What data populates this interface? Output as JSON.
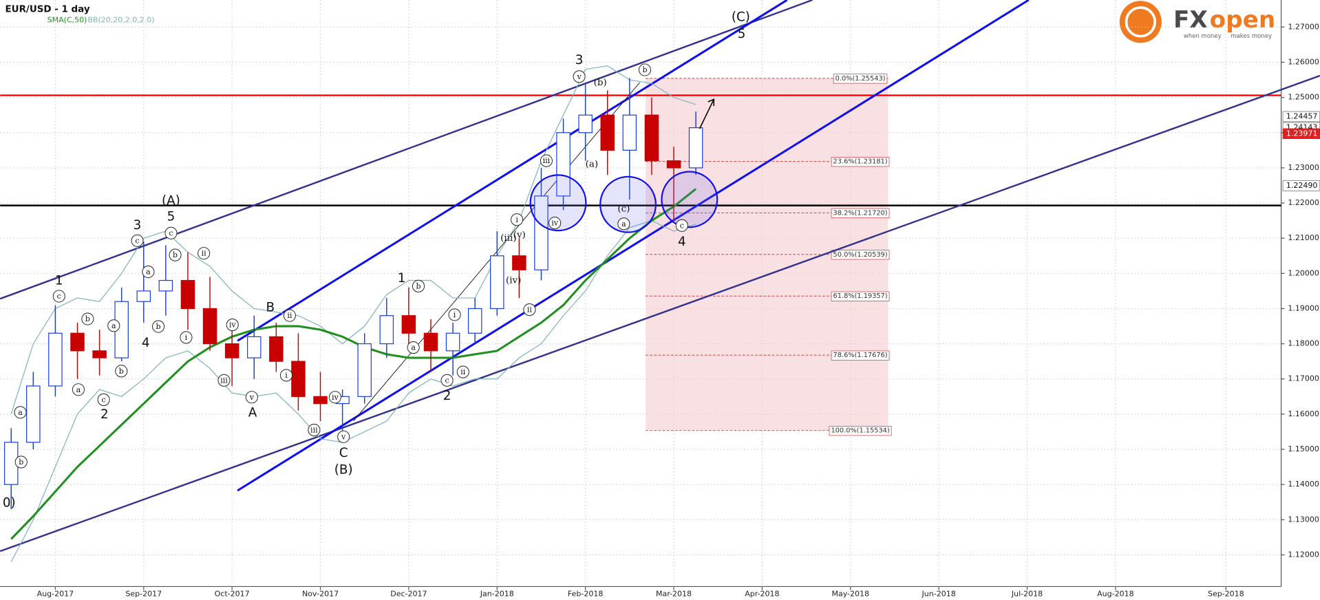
{
  "chart_data": {
    "type": "candlestick",
    "title": "EUR/USD - 1 day",
    "categories": [
      null,
      null,
      "Aug-2017",
      null,
      null,
      null,
      "Sep-2017",
      null,
      null,
      null,
      "Oct-2017",
      null,
      null,
      null,
      "Nov-2017",
      null,
      null,
      null,
      "Dec-2017",
      null,
      null,
      null,
      "Jan-2018",
      null,
      null,
      null,
      "Feb-2018",
      null,
      null,
      null,
      "Mar-2018",
      null,
      null,
      null,
      "Apr-2018",
      null,
      null,
      null,
      "May-2018",
      null,
      null,
      null,
      "Jun-2018",
      null,
      null,
      null,
      "Jul-2018",
      null,
      null,
      null,
      "Aug-2018",
      null,
      null,
      null,
      null,
      "Sep-2018",
      null,
      null
    ],
    "open": [
      1.14,
      1.152,
      1.168,
      1.183,
      1.178,
      1.176,
      1.192,
      1.195,
      1.198,
      1.19,
      1.18,
      1.176,
      1.182,
      1.175,
      1.165,
      1.163,
      1.165,
      1.18,
      1.188,
      1.183,
      1.178,
      1.183,
      1.19,
      1.205,
      1.201,
      1.222,
      1.24,
      1.245,
      1.235,
      1.245,
      1.232,
      1.23,
      null,
      null,
      null,
      null,
      null,
      null,
      null,
      null,
      null,
      null,
      null,
      null,
      null,
      null,
      null,
      null,
      null,
      null,
      null,
      null,
      null,
      null,
      null,
      null,
      null,
      null
    ],
    "high": [
      1.156,
      1.172,
      1.191,
      1.186,
      1.184,
      1.196,
      1.209,
      1.208,
      1.206,
      1.199,
      1.186,
      1.188,
      1.186,
      1.183,
      1.172,
      1.167,
      1.183,
      1.193,
      1.196,
      1.187,
      1.186,
      1.193,
      1.212,
      1.21,
      1.23,
      1.244,
      1.254,
      1.252,
      1.2555,
      1.25,
      1.236,
      1.246,
      null,
      null,
      null,
      null,
      null,
      null,
      null,
      null,
      null,
      null,
      null,
      null,
      null,
      null,
      null,
      null,
      null,
      null,
      null,
      null,
      null,
      null,
      null,
      null,
      null,
      null
    ],
    "low": [
      1.133,
      1.15,
      1.165,
      1.17,
      1.171,
      1.175,
      1.186,
      1.188,
      1.184,
      1.178,
      1.168,
      1.17,
      1.172,
      1.161,
      1.158,
      1.155,
      1.163,
      1.176,
      1.18,
      1.172,
      1.171,
      1.18,
      1.188,
      1.193,
      1.198,
      1.218,
      1.232,
      1.228,
      1.221,
      1.228,
      1.215,
      1.228,
      null,
      null,
      null,
      null,
      null,
      null,
      null,
      null,
      null,
      null,
      null,
      null,
      null,
      null,
      null,
      null,
      null,
      null,
      null,
      null,
      null,
      null,
      null,
      null,
      null,
      null
    ],
    "close": [
      1.152,
      1.168,
      1.183,
      1.178,
      1.176,
      1.192,
      1.195,
      1.198,
      1.19,
      1.18,
      1.176,
      1.182,
      1.175,
      1.165,
      1.163,
      1.165,
      1.18,
      1.188,
      1.183,
      1.178,
      1.183,
      1.19,
      1.205,
      1.201,
      1.222,
      1.24,
      1.245,
      1.235,
      1.245,
      1.232,
      1.23,
      1.2414,
      null,
      null,
      null,
      null,
      null,
      null,
      null,
      null,
      null,
      null,
      null,
      null,
      null,
      null,
      null,
      null,
      null,
      null,
      null,
      null,
      null,
      null,
      null,
      null,
      null,
      null
    ],
    "up_color": "#1c3fd6",
    "down_color": "#c80000",
    "series": [
      {
        "name": "SMA(C,50)",
        "color": "#1f8f1f",
        "values": [
          1.1245,
          1.131,
          1.138,
          1.145,
          1.151,
          1.157,
          1.163,
          1.169,
          1.175,
          1.179,
          1.182,
          1.184,
          1.185,
          1.185,
          1.184,
          1.182,
          1.179,
          1.177,
          1.176,
          1.176,
          1.176,
          1.177,
          1.178,
          1.182,
          1.186,
          1.191,
          1.198,
          1.204,
          1.21,
          1.215,
          1.219,
          1.224,
          null,
          null,
          null,
          null,
          null,
          null,
          null,
          null,
          null,
          null,
          null,
          null,
          null,
          null,
          null,
          null,
          null,
          null,
          null,
          null,
          null,
          null,
          null,
          null,
          null,
          null
        ]
      },
      {
        "name": "BB(20,20,2.0,2.0)",
        "color": "#7fb3bd",
        "upper": [
          1.16,
          1.18,
          1.19,
          1.193,
          1.192,
          1.2,
          1.21,
          1.212,
          1.206,
          1.202,
          1.195,
          1.19,
          1.189,
          1.188,
          1.185,
          1.18,
          1.185,
          1.194,
          1.198,
          1.198,
          1.193,
          1.193,
          1.205,
          1.215,
          1.232,
          1.245,
          1.258,
          1.259,
          1.255,
          1.254,
          1.25,
          1.248,
          null,
          null,
          null,
          null,
          null,
          null,
          null,
          null,
          null,
          null,
          null,
          null,
          null,
          null,
          null,
          null,
          null,
          null,
          null,
          null,
          null,
          null,
          null,
          null,
          null,
          null
        ],
        "lower": [
          1.118,
          1.13,
          1.145,
          1.16,
          1.167,
          1.165,
          1.17,
          1.176,
          1.178,
          1.173,
          1.166,
          1.165,
          1.166,
          1.16,
          1.153,
          1.152,
          1.155,
          1.158,
          1.166,
          1.17,
          1.168,
          1.17,
          1.17,
          1.176,
          1.18,
          1.188,
          1.195,
          1.205,
          1.213,
          1.215,
          1.212,
          1.214,
          null,
          null,
          null,
          null,
          null,
          null,
          null,
          null,
          null,
          null,
          null,
          null,
          null,
          null,
          null,
          null,
          null,
          null,
          null,
          null,
          null,
          null,
          null,
          null,
          null,
          null
        ]
      }
    ],
    "ylim": [
      1.111,
      1.2777
    ],
    "yticks": [
      {
        "value": 1.12,
        "label": "1.12000"
      },
      {
        "value": 1.13,
        "label": "1.13000"
      },
      {
        "value": 1.14,
        "label": "1.14000"
      },
      {
        "value": 1.15,
        "label": "1.15000"
      },
      {
        "value": 1.16,
        "label": "1.16000"
      },
      {
        "value": 1.17,
        "label": "1.17000"
      },
      {
        "value": 1.18,
        "label": "1.18000"
      },
      {
        "value": 1.19,
        "label": "1.19000"
      },
      {
        "value": 1.2,
        "label": "1.20000"
      },
      {
        "value": 1.21,
        "label": "1.21000"
      },
      {
        "value": 1.22,
        "label": "1.22000"
      },
      {
        "value": 1.23,
        "label": "1.23000"
      },
      {
        "value": 1.24,
        "label": "1.24000"
      },
      {
        "value": 1.25,
        "label": "1.25000"
      },
      {
        "value": 1.26,
        "label": "1.26000"
      },
      {
        "value": 1.27,
        "label": "1.27000"
      }
    ],
    "grid": true,
    "hlines": [
      {
        "value": 1.2506,
        "color": "#ff0000"
      },
      {
        "value": 1.2193,
        "color": "#000000"
      }
    ],
    "fib_levels": [
      {
        "value": 1.25543,
        "label": "0.0%(1.25543)"
      },
      {
        "value": 1.23181,
        "label": "23.6%(1.23181)"
      },
      {
        "value": 1.2172,
        "label": "38.2%(1.21720)"
      },
      {
        "value": 1.20539,
        "label": "50.0%(1.20539)"
      },
      {
        "value": 1.19357,
        "label": "61.8%(1.19357)"
      },
      {
        "value": 1.17676,
        "label": "78.6%(1.17676)"
      },
      {
        "value": 1.15534,
        "label": "100.0%(1.15534)"
      }
    ],
    "price_tags": [
      {
        "value": 1.24457,
        "label": "1.24457",
        "color": "#ffffff"
      },
      {
        "value": 1.24143,
        "label": "1.24143",
        "color": "#ffffff"
      },
      {
        "value": 1.23971,
        "label": "1.23971",
        "color": "#e02020"
      },
      {
        "value": 1.2249,
        "label": "1.22490",
        "color": "#ffffff"
      }
    ],
    "waves": [
      "(C)",
      "5",
      "3",
      "(A)",
      "5",
      "3",
      "1",
      "4",
      "2",
      "B",
      "A",
      "C",
      "(B)",
      "1",
      "2",
      "4",
      "0)",
      "c",
      "b",
      "a",
      "c",
      "b",
      "a",
      "c",
      "a",
      "b",
      "c",
      "b",
      "ii",
      "i",
      "iv",
      "iii",
      "v",
      "ii",
      "i",
      "iv",
      "iii",
      "v",
      "b",
      "a",
      "i",
      "ii",
      "c",
      "i",
      "iii",
      "iv",
      "ii",
      "v",
      "b",
      "a",
      "c",
      "a",
      "b",
      "(iii)",
      "(v)",
      "(iv)",
      "(b)",
      "(a)",
      "(c)"
    ],
    "logo": {
      "prefix": "FX",
      "suffix": "open",
      "tag_left": "when money",
      "tag_right": "makes money"
    }
  }
}
